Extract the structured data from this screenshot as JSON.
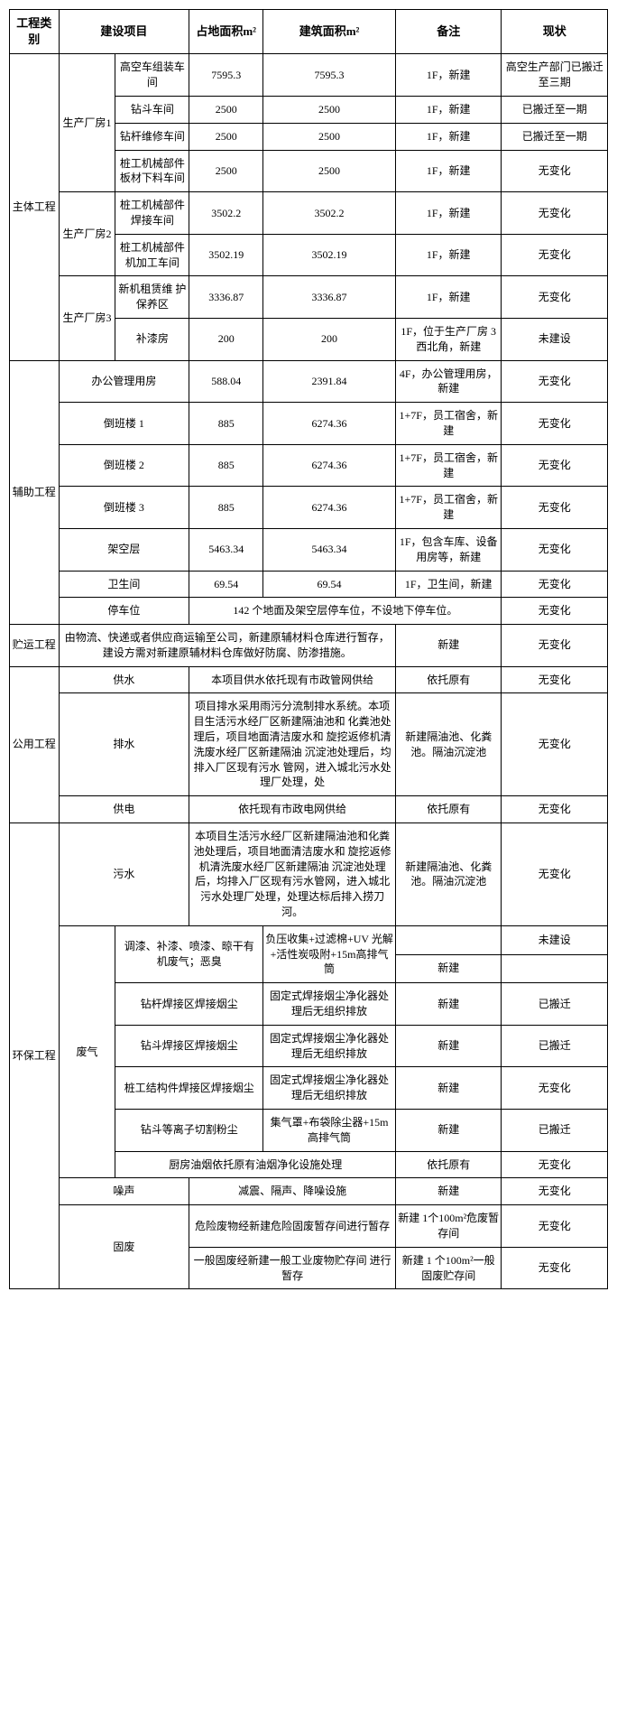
{
  "headers": [
    "工程类别",
    "建设项目",
    "占地面积m²",
    "建筑面积m²",
    "备注",
    "现状"
  ],
  "r": {
    "cat_zt": "主体工程",
    "scf1": "生产厂房1",
    "scf2": "生产厂房2",
    "scf3": "生产厂房3",
    "r1": {
      "name": "高空车组装车间",
      "a": "7595.3",
      "b": "7595.3",
      "bz": "1F，新建",
      "xz": "高空生产部门已搬迁至三期"
    },
    "r2": {
      "name": "钻斗车间",
      "a": "2500",
      "b": "2500",
      "bz": "1F，新建",
      "xz": "已搬迁至一期"
    },
    "r3": {
      "name": "钻杆维修车间",
      "a": "2500",
      "b": "2500",
      "bz": "1F，新建",
      "xz": "已搬迁至一期"
    },
    "r4": {
      "name": "桩工机械部件板材下料车间",
      "a": "2500",
      "b": "2500",
      "bz": "1F，新建",
      "xz": "无变化"
    },
    "r5": {
      "name": "桩工机械部件焊接车间",
      "a": "3502.2",
      "b": "3502.2",
      "bz": "1F，新建",
      "xz": "无变化"
    },
    "r6": {
      "name": "桩工机械部件机加工车间",
      "a": "3502.19",
      "b": "3502.19",
      "bz": "1F，新建",
      "xz": "无变化"
    },
    "r7": {
      "name": "新机租赁维 护保养区",
      "a": "3336.87",
      "b": "3336.87",
      "bz": "1F，新建",
      "xz": "无变化"
    },
    "r8": {
      "name": "补漆房",
      "a": "200",
      "b": "200",
      "bz": "1F，位于生产厂房 3西北角，新建",
      "xz": "未建设"
    },
    "cat_fz": "辅助工程",
    "r9": {
      "name": "办公管理用房",
      "a": "588.04",
      "b": "2391.84",
      "bz": "4F，办公管理用房，新建",
      "xz": "无变化"
    },
    "r10": {
      "name": "倒班楼 1",
      "a": "885",
      "b": "6274.36",
      "bz": "1+7F，员工宿舍，新建",
      "xz": "无变化"
    },
    "r11": {
      "name": "倒班楼 2",
      "a": "885",
      "b": "6274.36",
      "bz": "1+7F，员工宿舍，新建",
      "xz": "无变化"
    },
    "r12": {
      "name": "倒班楼 3",
      "a": "885",
      "b": "6274.36",
      "bz": "1+7F，员工宿舍，新建",
      "xz": "无变化"
    },
    "r13": {
      "name": "架空层",
      "a": "5463.34",
      "b": "5463.34",
      "bz": "1F，包含车库、设备用房等，新建",
      "xz": "无变化"
    },
    "r14": {
      "name": "卫生间",
      "a": "69.54",
      "b": "69.54",
      "bz": "1F，卫生间，新建",
      "xz": "无变化"
    },
    "r15": {
      "name": "停车位",
      "desc": "142 个地面及架空层停车位，不设地下停车位。",
      "xz": "无变化"
    },
    "cat_zy": "贮运工程",
    "r16": {
      "desc": "由物流、快递或者供应商运输至公司，新建原辅材料仓库进行暂存，建设方需对新建原辅材料仓库做好防腐、防渗措施。",
      "bz": "新建",
      "xz": "无变化"
    },
    "cat_gy": "公用工程",
    "r17": {
      "name": "供水",
      "desc": "本项目供水依托现有市政管网供给",
      "bz": "依托原有",
      "xz": "无变化"
    },
    "r18": {
      "name": "排水",
      "desc": "项目排水采用雨污分流制排水系统。本项目生活污水经厂区新建隔油池和 化粪池处理后，项目地面清洁废水和 旋挖返修机清洗废水经厂区新建隔油 沉淀池处理后，均排入厂区现有污水 管网，进入城北污水处理厂处理，处",
      "bz": "新建隔油池、化粪池。隔油沉淀池",
      "xz": "无变化"
    },
    "r19": {
      "name": "供电",
      "desc": "依托现有市政电网供给",
      "bz": "依托原有",
      "xz": "无变化"
    },
    "cat_hb": "环保工程",
    "r20": {
      "name": "污水",
      "desc": "本项目生活污水经厂区新建隔油池和化粪池处理后，项目地面清洁废水和 旋挖返修机清洗废水经厂区新建隔油 沉淀池处理后，均排入厂区现有污水管网，进入城北污水处理厂处理，处理达标后排入捞刀河。",
      "bz": "新建隔油池、化粪池。隔油沉淀池",
      "xz": "无变化"
    },
    "fq": "废气",
    "r21": {
      "name": "调漆、补漆、喷漆、晾干有 机废气；恶臭",
      "desc": "负压收集+过滤棉+UV 光解+活性炭吸附+15m高排气筒",
      "bz": "新建",
      "xz": "未建设"
    },
    "r22": {
      "name": "钻杆焊接区焊接烟尘",
      "desc": "固定式焊接烟尘净化器处理后无组织排放",
      "bz": "新建",
      "xz": "已搬迁"
    },
    "r23": {
      "name": "钻斗焊接区焊接烟尘",
      "desc": "固定式焊接烟尘净化器处理后无组织排放",
      "bz": "新建",
      "xz": "已搬迁"
    },
    "r24": {
      "name": "桩工结构件焊接区焊接烟尘",
      "desc": "固定式焊接烟尘净化器处理后无组织排放",
      "bz": "新建",
      "xz": "无变化"
    },
    "r25": {
      "name": "钻斗等离子切割粉尘",
      "desc": "集气罩+布袋除尘器+15m高排气筒",
      "bz": "新建",
      "xz": "已搬迁"
    },
    "r26": {
      "desc": "厨房油烟依托原有油烟净化设施处理",
      "bz": "依托原有",
      "xz": "无变化"
    },
    "r27": {
      "name": "噪声",
      "desc": "减震、隔声、降噪设施",
      "bz": "新建",
      "xz": "无变化"
    },
    "gf": "固废",
    "r28": {
      "desc": "危险废物经新建危险固废暂存间进行暂存",
      "bz": "新建 1个100m²危废暂存间",
      "xz": "无变化"
    },
    "r29": {
      "desc": "一般固废经新建一般工业废物贮存间 进行暂存",
      "bz": "新建 1 个100m²一般固废贮存间",
      "xz": "无变化"
    }
  }
}
